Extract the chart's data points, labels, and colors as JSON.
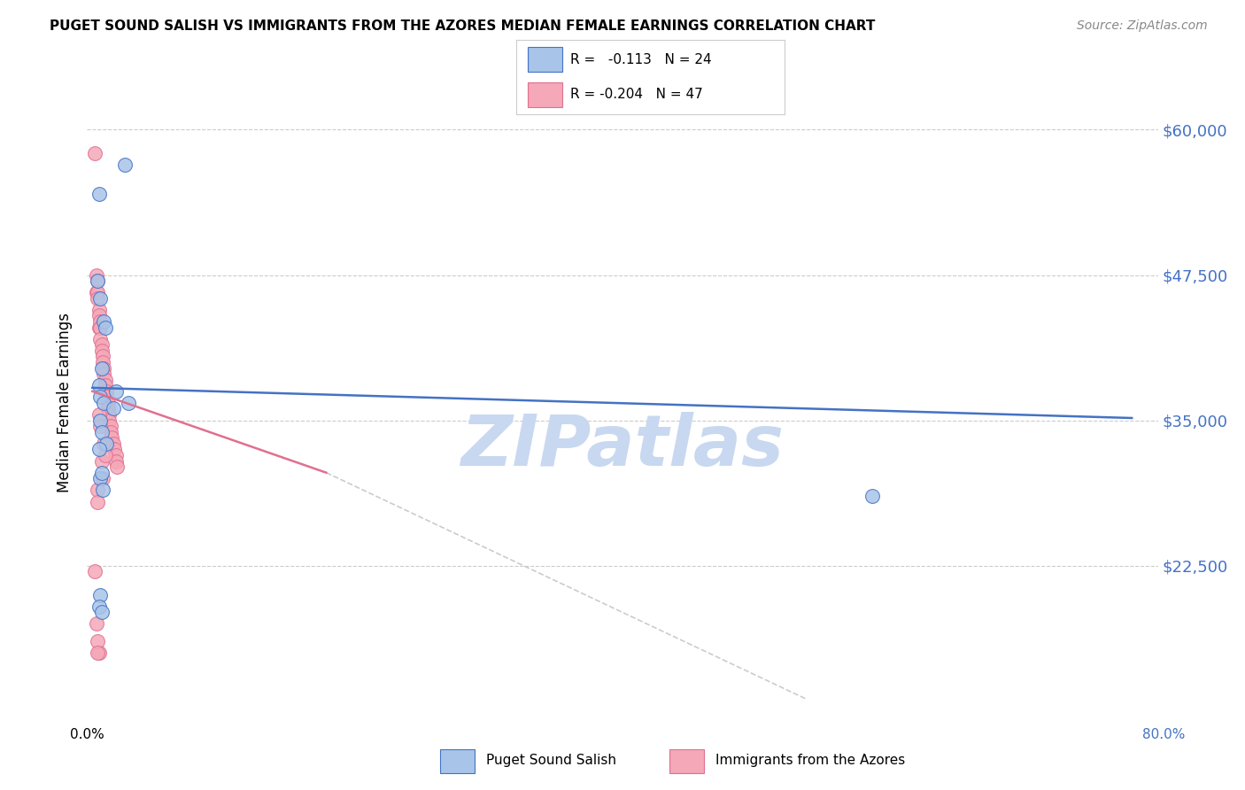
{
  "title": "PUGET SOUND SALISH VS IMMIGRANTS FROM THE AZORES MEDIAN FEMALE EARNINGS CORRELATION CHART",
  "source": "Source: ZipAtlas.com",
  "ylabel": "Median Female Earnings",
  "y_ticks": [
    22500,
    35000,
    47500,
    60000
  ],
  "y_tick_labels": [
    "$22,500",
    "$35,000",
    "$47,500",
    "$60,000"
  ],
  "y_min": 10000,
  "y_max": 63000,
  "x_min": -0.004,
  "x_max": 0.82,
  "legend_R1": " -0.113",
  "legend_N1": "24",
  "legend_R2": "-0.204",
  "legend_N2": "47",
  "color_blue": "#a8c4e8",
  "color_pink": "#f4a8b8",
  "color_blue_dark": "#4472c4",
  "color_pink_dark": "#e07090",
  "color_blue_label": "#4472c4",
  "watermark_color": "#c8d8f0",
  "trendline_blue": "#4472c4",
  "trendline_pink": "#e07090",
  "trendline_dashed_color": "#cccccc",
  "blue_trend_x": [
    0.0,
    0.8
  ],
  "blue_trend_y": [
    37800,
    35200
  ],
  "pink_trend_x": [
    0.0,
    0.18
  ],
  "pink_trend_y": [
    37500,
    30500
  ],
  "dashed_trend_x": [
    0.18,
    0.55
  ],
  "dashed_trend_y": [
    30500,
    11000
  ],
  "blue_x": [
    0.005,
    0.025,
    0.004,
    0.006,
    0.009,
    0.01,
    0.007,
    0.005,
    0.006,
    0.009,
    0.018,
    0.006,
    0.007,
    0.016,
    0.011,
    0.005,
    0.006,
    0.007,
    0.008,
    0.006,
    0.028,
    0.6,
    0.005,
    0.007
  ],
  "blue_y": [
    54500,
    57000,
    47000,
    45500,
    43500,
    43000,
    39500,
    38000,
    37000,
    36500,
    37500,
    35000,
    34000,
    36000,
    33000,
    32500,
    30000,
    30500,
    29000,
    20000,
    36500,
    28500,
    19000,
    18500
  ],
  "pink_x": [
    0.002,
    0.003,
    0.003,
    0.004,
    0.004,
    0.004,
    0.005,
    0.005,
    0.005,
    0.006,
    0.006,
    0.006,
    0.007,
    0.007,
    0.008,
    0.008,
    0.009,
    0.009,
    0.01,
    0.01,
    0.011,
    0.011,
    0.012,
    0.012,
    0.013,
    0.013,
    0.014,
    0.014,
    0.015,
    0.016,
    0.017,
    0.018,
    0.018,
    0.019,
    0.005,
    0.006,
    0.007,
    0.008,
    0.009,
    0.01,
    0.004,
    0.004,
    0.005,
    0.002,
    0.003,
    0.004,
    0.004
  ],
  "pink_y": [
    58000,
    47500,
    46000,
    47000,
    46000,
    45500,
    44500,
    44000,
    43000,
    43500,
    43000,
    42000,
    41500,
    41000,
    40500,
    40000,
    39500,
    39000,
    38500,
    38000,
    37500,
    37000,
    36500,
    36000,
    35500,
    35000,
    34500,
    34000,
    33500,
    33000,
    32500,
    32000,
    31500,
    31000,
    35500,
    34500,
    31500,
    30000,
    33000,
    32000,
    29000,
    28000,
    15000,
    22000,
    17500,
    16000,
    15000
  ]
}
